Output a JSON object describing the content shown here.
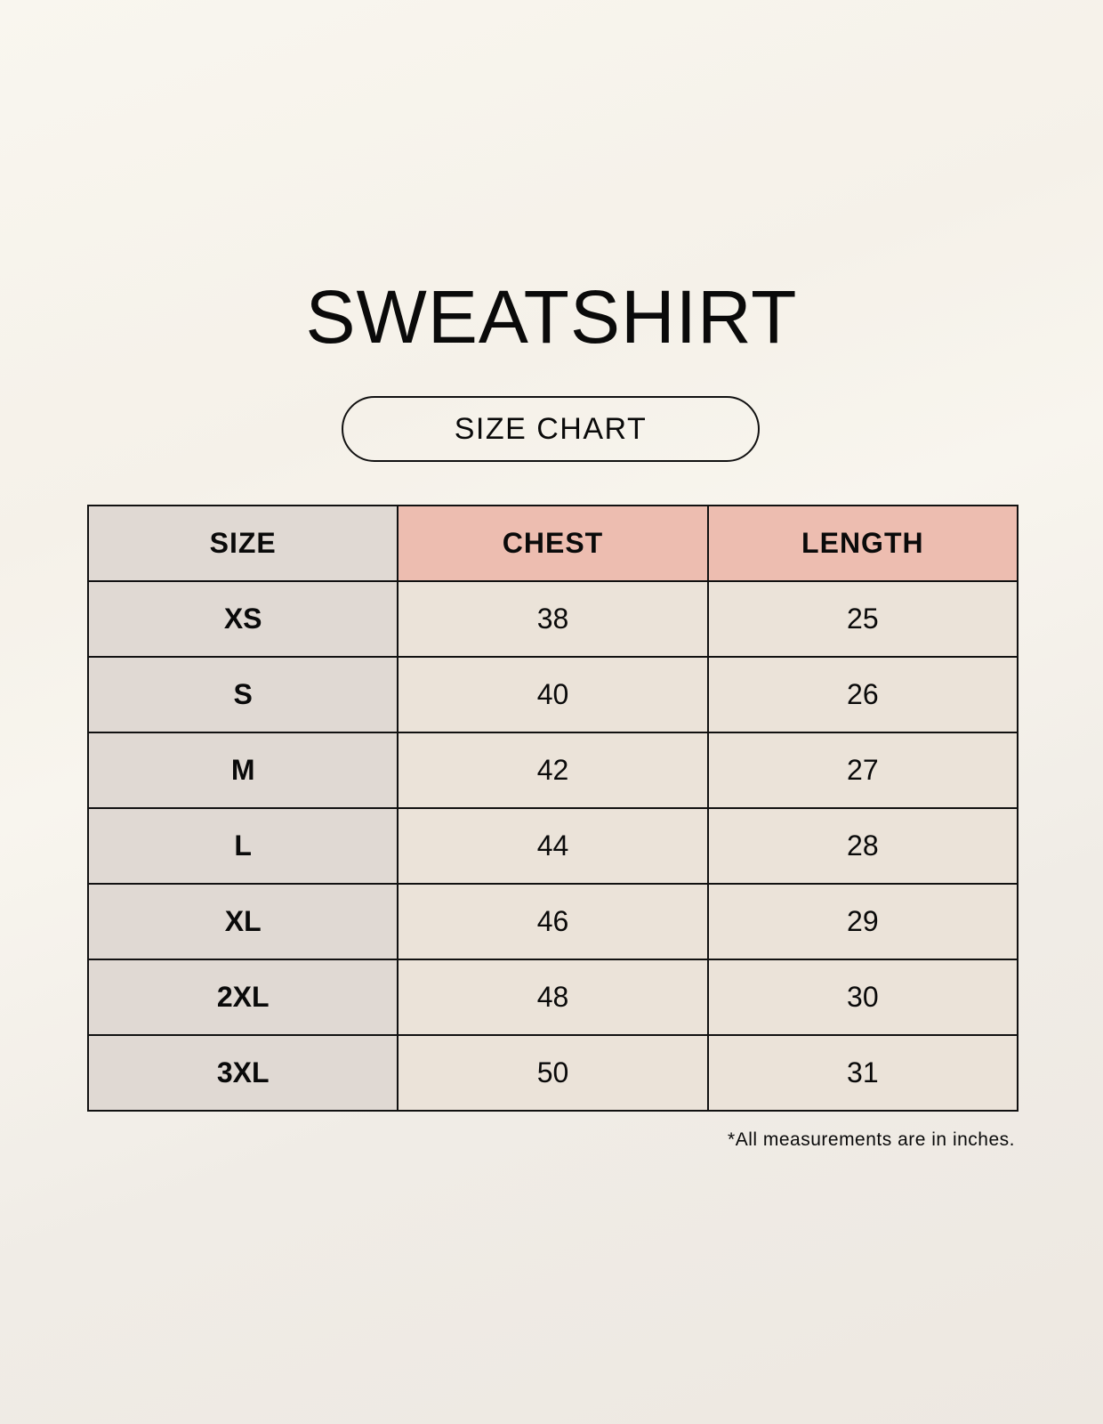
{
  "title": "SWEATSHIRT",
  "subtitle": "SIZE CHART",
  "table": {
    "headers": [
      "SIZE",
      "CHEST",
      "LENGTH"
    ],
    "rows": [
      [
        "XS",
        "38",
        "25"
      ],
      [
        "S",
        "40",
        "26"
      ],
      [
        "M",
        "42",
        "27"
      ],
      [
        "L",
        "44",
        "28"
      ],
      [
        "XL",
        "46",
        "29"
      ],
      [
        "2XL",
        "48",
        "30"
      ],
      [
        "3XL",
        "50",
        "31"
      ]
    ]
  },
  "footnote": "*All measurements are in inches.",
  "colors": {
    "header_accent": "#edbdb0",
    "size_column": "#e0d9d3",
    "value_cells": "#ebe3d9"
  }
}
